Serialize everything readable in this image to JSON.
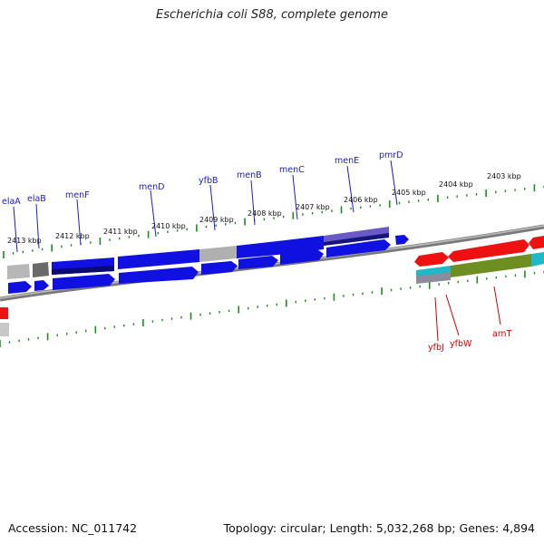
{
  "title": "Escherichia coli S88, complete genome",
  "footer": {
    "accession": "Accession: NC_011742",
    "summary": "Topology: circular; Length: 5,032,268 bp; Genes: 4,894"
  },
  "colors": {
    "forward_label": "#1a1ad4",
    "reverse_label": "#d40000",
    "tick": "#1e8c1e",
    "backbone": "#7a7a7a",
    "gene_blue": "#1010e0",
    "gene_red": "#ee1111",
    "gene_gray": "#b0b0b0",
    "gene_purple": "#6a5ac8",
    "gene_olive": "#6e8e22",
    "gene_cyan": "#20b8c8"
  },
  "ruler_labels": [
    {
      "text": "2413 kbp"
    },
    {
      "text": "2412 kbp"
    },
    {
      "text": "2411 kbp"
    },
    {
      "text": "2410 kbp"
    },
    {
      "text": "2409 kbp"
    },
    {
      "text": "2408 kbp"
    },
    {
      "text": "2407 kbp"
    },
    {
      "text": "2406 kbp"
    },
    {
      "text": "2405 kbp"
    },
    {
      "text": "2404 kbp"
    },
    {
      "text": "2403 kbp"
    }
  ],
  "forward_gene_labels": [
    {
      "text": "elaA"
    },
    {
      "text": "elaB"
    },
    {
      "text": "menF"
    },
    {
      "text": "menD"
    },
    {
      "text": "yfbB"
    },
    {
      "text": "menB"
    },
    {
      "text": "menC"
    },
    {
      "text": "menE"
    },
    {
      "text": "pmrD"
    }
  ],
  "reverse_gene_labels": [
    {
      "text": "yfbJ"
    },
    {
      "text": "yfbW"
    },
    {
      "text": "arnT"
    }
  ]
}
